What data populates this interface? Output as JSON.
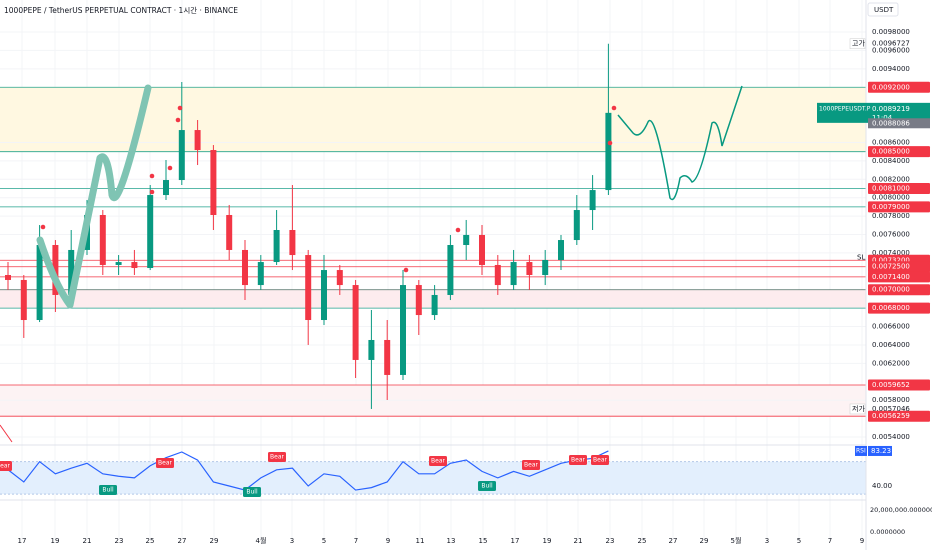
{
  "header": {
    "title": "1000PEPE / TetherUS PERPETUAL CONTRACT · 1시간 · BINANCE",
    "currency": "USDT"
  },
  "chart_data": {
    "type": "candlestick",
    "xtick_labels": [
      "17",
      "19",
      "21",
      "23",
      "25",
      "27",
      "29",
      "4월",
      "3",
      "5",
      "7",
      "9",
      "11",
      "13",
      "15",
      "17",
      "19",
      "21",
      "23",
      "25",
      "27",
      "29",
      "5월",
      "3",
      "5",
      "7",
      "9"
    ],
    "open": [
      0.00716,
      0.007106,
      0.006671,
      0.007486,
      0.006943,
      0.007432,
      0.007812,
      0.007269,
      0.007301,
      0.007236,
      0.008029,
      0.008192,
      0.008735,
      0.008518,
      0.007812,
      0.007432,
      0.007051,
      0.007301,
      0.007649,
      0.007377,
      0.006671,
      0.007214,
      0.007051,
      0.006237,
      0.006454,
      0.006074,
      0.007051,
      0.006725,
      0.006943,
      0.007486,
      0.007595,
      0.007269,
      0.007051,
      0.007301,
      0.00716,
      0.007323,
      0.00754,
      0.007866,
      0.008083
    ],
    "high": [
      0.007301,
      0.00716,
      0.007703,
      0.00754,
      0.007649,
      0.007975,
      0.007866,
      0.007377,
      0.007432,
      0.008138,
      0.008409,
      0.009257,
      0.008844,
      0.008572,
      0.007921,
      0.00754,
      0.007377,
      0.007866,
      0.008138,
      0.007432,
      0.007377,
      0.007269,
      0.007106,
      0.00678,
      0.006671,
      0.007214,
      0.007106,
      0.007051,
      0.007595,
      0.007758,
      0.007703,
      0.007377,
      0.007432,
      0.007377,
      0.007432,
      0.007595,
      0.008029,
      0.008246,
      0.0096727
    ],
    "low": [
      0.006997,
      0.006476,
      0.006649,
      0.006758,
      0.006888,
      0.007377,
      0.00716,
      0.00716,
      0.00716,
      0.007214,
      0.007975,
      0.008138,
      0.008355,
      0.007649,
      0.007323,
      0.006888,
      0.006997,
      0.007269,
      0.007214,
      0.0064,
      0.006617,
      0.006943,
      0.006041,
      0.0057046,
      0.005802,
      0.006019,
      0.006508,
      0.006671,
      0.006888,
      0.007323,
      0.00716,
      0.006943,
      0.006997,
      0.006997,
      0.007051,
      0.007214,
      0.007486,
      0.007649,
      0.008029
    ],
    "close": [
      0.007106,
      0.006671,
      0.007486,
      0.006943,
      0.007432,
      0.007812,
      0.007269,
      0.007301,
      0.007236,
      0.008029,
      0.008192,
      0.008735,
      0.008518,
      0.007812,
      0.007432,
      0.007051,
      0.007301,
      0.007649,
      0.007377,
      0.006671,
      0.007214,
      0.007051,
      0.006237,
      0.006454,
      0.006074,
      0.007051,
      0.006725,
      0.006943,
      0.007486,
      0.007595,
      0.007269,
      0.007051,
      0.007301,
      0.00716,
      0.007323,
      0.00754,
      0.007866,
      0.008083,
      0.0089219
    ],
    "up_color": "#089981",
    "down_color": "#f23645",
    "ylim": [
      0.005313,
      0.010148
    ],
    "yticks": [
      {
        "value": 0.0098,
        "label": "0.0098000"
      },
      {
        "value": 0.0096,
        "label": "0.0096000"
      },
      {
        "value": 0.0094,
        "label": "0.0094000"
      },
      {
        "value": 0.0086,
        "label": "0.0086000"
      },
      {
        "value": 0.0084,
        "label": "0.0084000"
      },
      {
        "value": 0.0082,
        "label": "0.0082000"
      },
      {
        "value": 0.008,
        "label": "0.0080000"
      },
      {
        "value": 0.0078,
        "label": "0.0078000"
      },
      {
        "value": 0.0076,
        "label": "0.0076000"
      },
      {
        "value": 0.0074,
        "label": "0.0074000"
      },
      {
        "value": 0.0066,
        "label": "0.0066000"
      },
      {
        "value": 0.0064,
        "label": "0.0064000"
      },
      {
        "value": 0.0062,
        "label": "0.0062000"
      },
      {
        "value": 0.0058,
        "label": "0.0058000"
      },
      {
        "value": 0.0054,
        "label": "0.0054000"
      }
    ],
    "levels": [
      {
        "value": 0.0092,
        "label": "0.0092000",
        "color": "#22a28c"
      },
      {
        "value": 0.0085,
        "label": "0.0085000",
        "color": "#22a28c"
      },
      {
        "value": 0.0081,
        "label": "0.0081000",
        "color": "#22a28c"
      },
      {
        "value": 0.0079,
        "label": "0.0079000",
        "color": "#22a28c"
      },
      {
        "value": 0.00732,
        "label": "0.0073200",
        "color": "#f23645"
      },
      {
        "value": 0.00725,
        "label": "0.0072500",
        "color": "#f23645"
      },
      {
        "value": 0.00714,
        "label": "0.0071400",
        "color": "#f23645"
      },
      {
        "value": 0.007,
        "label": "0.0070000",
        "color": "#4a6a60"
      },
      {
        "value": 0.0068,
        "label": "0.0068000",
        "color": "#22a28c"
      },
      {
        "value": 0.0059652,
        "label": "0.0059652",
        "color": "#f23645"
      },
      {
        "value": 0.0056259,
        "label": "0.0056259",
        "color": "#f23645"
      }
    ],
    "zones": [
      {
        "levels": [
          0,
          1
        ],
        "color": "#fff8e1"
      },
      {
        "levels": [
          7,
          8
        ],
        "color": "#fdecee"
      },
      {
        "levels": [
          9,
          10
        ],
        "color": "#fdf3f4"
      }
    ],
    "last_price": {
      "symbol": "1000PEPEUSDT.P",
      "label": "0.0089219",
      "countdown": "11:04"
    },
    "prev_price": {
      "value": 0.0088086,
      "label": "0.0088086"
    },
    "high_marker": {
      "tag": "고가",
      "value": 0.0096727,
      "label": "0.0096727"
    },
    "low_marker": {
      "tag": "저가",
      "value": 0.0057046,
      "label": "0.0057046"
    },
    "sl": {
      "label": "SL",
      "value": 0.00735
    },
    "rsi": {
      "name": "RSI",
      "color": "#2962ff",
      "values": [
        60,
        45,
        70,
        55,
        62,
        68,
        55,
        52,
        50,
        65,
        75,
        82,
        72,
        45,
        40,
        35,
        50,
        60,
        62,
        40,
        55,
        52,
        35,
        38,
        45,
        70,
        55,
        55,
        68,
        72,
        58,
        50,
        58,
        52,
        60,
        68,
        72,
        74,
        83.23
      ],
      "last_label": "83.23",
      "ylim": [
        22.7,
        90.6
      ],
      "band": [
        30,
        70
      ],
      "yticks": [
        {
          "value": 40,
          "label": "40.00"
        }
      ],
      "signals": [
        "Bear",
        "Bear",
        "Bear",
        "Bear",
        "Bear",
        "Bear",
        "Bear",
        "Bull",
        "Bull",
        "Bull"
      ]
    },
    "volume": {
      "ylim": [
        -16363636,
        29090909
      ],
      "yticks": [
        {
          "value": 20000000,
          "label": "20,000,000.0000000"
        },
        {
          "value": 0,
          "label": "0.0000000"
        }
      ]
    }
  }
}
